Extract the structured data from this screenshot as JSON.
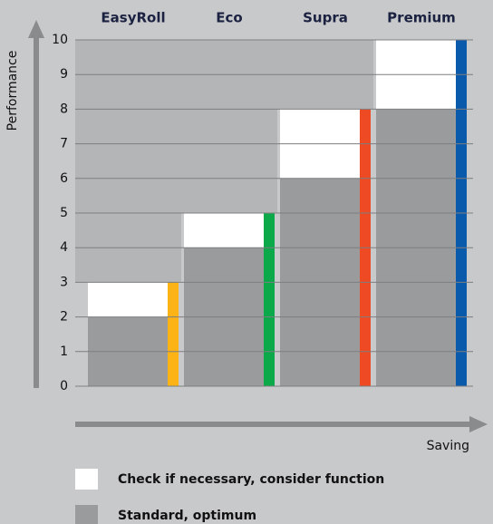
{
  "chart_data": {
    "type": "bar",
    "stacked": true,
    "categories": [
      "EasyRoll",
      "Eco",
      "Supra",
      "Premium"
    ],
    "series": [
      {
        "name": "Standard, optimum",
        "color": "#9a9b9d",
        "values": [
          2,
          4,
          6,
          8
        ]
      },
      {
        "name": "Check if necessary, consider function",
        "color": "#ffffff",
        "values": [
          1,
          1,
          2,
          2
        ]
      }
    ],
    "category_colors": [
      "#fbb316",
      "#0ba94a",
      "#ee4a23",
      "#0a5aab"
    ],
    "ylabel": "Performance",
    "xlabel": "Saving",
    "ylim": [
      0,
      10
    ],
    "yticks": [
      0,
      1,
      2,
      3,
      4,
      5,
      6,
      7,
      8,
      9,
      10
    ],
    "grid": true
  }
}
